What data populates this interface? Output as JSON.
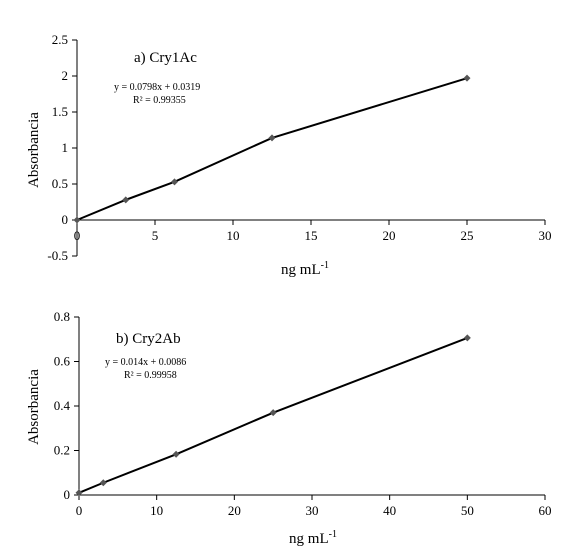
{
  "chart_data": [
    {
      "type": "line",
      "title": "a) Cry1Ac",
      "xlabel": "ng mL",
      "xlabel_sup": "-1",
      "ylabel": "Absorbancia",
      "xlim": [
        0,
        30
      ],
      "ylim": [
        -0.5,
        2.5
      ],
      "xticks": [
        0,
        5,
        10,
        15,
        20,
        25,
        30
      ],
      "yticks": [
        -0.5,
        0,
        0.5,
        1,
        1.5,
        2,
        2.5
      ],
      "xtick_labels": [
        "0",
        "5",
        "10",
        "15",
        "20",
        "25",
        "30"
      ],
      "ytick_labels": [
        "-0.5",
        "0",
        "0.5",
        "1",
        "1.5",
        "2",
        "2.5"
      ],
      "grid": false,
      "equation": "y = 0.0798x + 0.0319",
      "r2": "R² = 0.99355",
      "series": [
        {
          "x": [
            0,
            3.125,
            6.25,
            12.5,
            25
          ],
          "y": [
            0,
            0.28,
            0.53,
            1.14,
            1.97
          ],
          "color": "#555555",
          "marker": "diamond"
        }
      ],
      "line_color": "#000000"
    },
    {
      "type": "line",
      "title": "b) Cry2Ab",
      "xlabel": "ng mL",
      "xlabel_sup": "-1",
      "ylabel": "Absorbancia",
      "xlim": [
        0,
        60
      ],
      "ylim": [
        0,
        0.8
      ],
      "xticks": [
        0,
        10,
        20,
        30,
        40,
        50,
        60
      ],
      "yticks": [
        0,
        0.2,
        0.4,
        0.6,
        0.8
      ],
      "xtick_labels": [
        "0",
        "10",
        "20",
        "30",
        "40",
        "50",
        "60"
      ],
      "ytick_labels": [
        "0",
        "0.2",
        "0.4",
        "0.6",
        "0.8"
      ],
      "grid": false,
      "equation": "y = 0.014x + 0.0086",
      "r2": "R² = 0.99958",
      "series": [
        {
          "x": [
            0,
            3.125,
            12.5,
            25,
            50
          ],
          "y": [
            0.01,
            0.055,
            0.183,
            0.37,
            0.706
          ],
          "color": "#555555",
          "marker": "diamond"
        }
      ],
      "line_color": "#000000"
    }
  ]
}
